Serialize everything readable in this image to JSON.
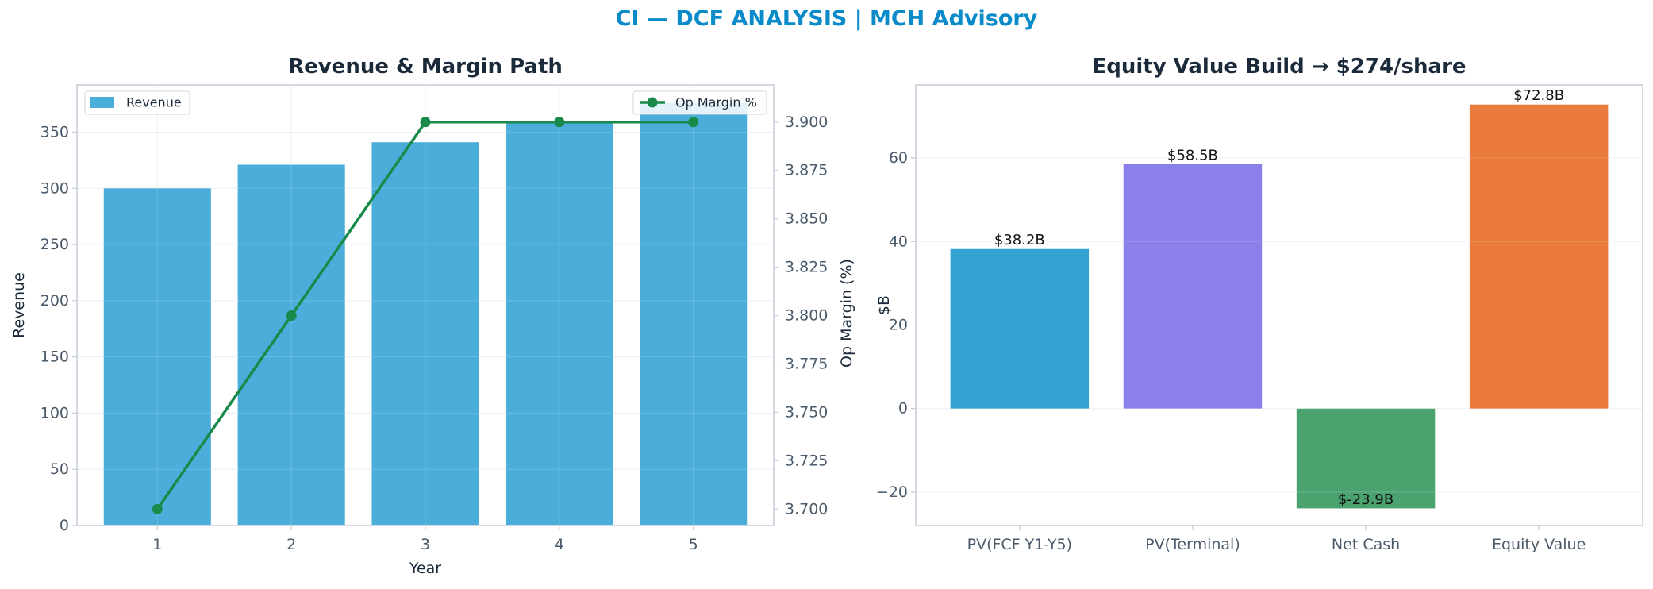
{
  "suptitle": "CI — DCF ANALYSIS | MCH Advisory",
  "colors": {
    "suptitle": "#0a8bc9",
    "title": "#1b2a3a",
    "axis_text": "#4a5a6a",
    "spine": "#c5ccd6",
    "revenue_bar": "#4badd9",
    "op_margin_line": "#1a8a4a",
    "waterfall": [
      "#33a3d4",
      "#8b80ea",
      "#4aa36f",
      "#ea7b3d"
    ]
  },
  "chart_data": [
    {
      "type": "bar",
      "title": "Revenue & Margin Path",
      "xlabel": "Year",
      "ylabel": "Revenue",
      "y2label": "Op Margin (%)",
      "categories": [
        "1",
        "2",
        "3",
        "4",
        "5"
      ],
      "series": [
        {
          "name": "Revenue",
          "type": "bar",
          "axis": "left",
          "values": [
            300,
            321,
            341,
            358,
            376
          ]
        },
        {
          "name": "Op Margin %",
          "type": "line",
          "axis": "right",
          "values": [
            3.7,
            3.8,
            3.9,
            3.9,
            3.9
          ]
        }
      ],
      "ylim": [
        0,
        392
      ],
      "y2lim": [
        3.6915,
        3.9192
      ],
      "yticks": [
        0,
        50,
        100,
        150,
        200,
        250,
        300,
        350
      ],
      "y2ticks": [
        3.7,
        3.725,
        3.75,
        3.775,
        3.8,
        3.825,
        3.85,
        3.875,
        3.9
      ],
      "y2tick_labels": [
        "3.700",
        "3.725",
        "3.750",
        "3.775",
        "3.800",
        "3.825",
        "3.850",
        "3.875",
        "3.900"
      ],
      "grid": true,
      "legend_left": "top-left",
      "legend_right": "top-right"
    },
    {
      "type": "bar",
      "title": "Equity Value Build → $274/share",
      "xlabel": "",
      "ylabel": "$B",
      "categories": [
        "PV(FCF Y1-Y5)",
        "PV(Terminal)",
        "Net Cash",
        "Equity Value"
      ],
      "values": [
        38.2,
        58.5,
        -23.9,
        72.8
      ],
      "data_labels": [
        "$38.2B",
        "$58.5B",
        "$-23.9B",
        "$72.8B"
      ],
      "ylim": [
        -28,
        77.5
      ],
      "yticks": [
        -20,
        0,
        20,
        40,
        60
      ],
      "ytick_labels": [
        "−20",
        "0",
        "20",
        "40",
        "60"
      ],
      "grid": true
    }
  ]
}
